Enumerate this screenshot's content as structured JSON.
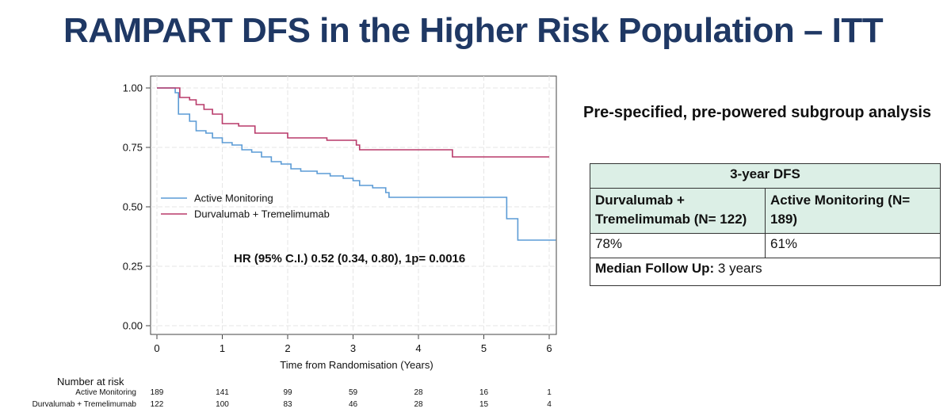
{
  "title": "RAMPART DFS in the Higher Risk Population – ITT",
  "subgroup_note": "Pre-specified, pre-powered subgroup analysis",
  "table": {
    "header": "3-year DFS",
    "columns": [
      {
        "name": "Durvalumab + Tremelimumab (N= 122)",
        "value": "78%"
      },
      {
        "name": "Active Monitoring (N= 189)",
        "value": "61%"
      }
    ],
    "followup_label": "Median Follow Up:",
    "followup_value": "3 years"
  },
  "chart_data": {
    "type": "line",
    "step": true,
    "xlabel": "Time from Randomisation (Years)",
    "ylabel": "",
    "xlim": [
      0,
      6.1
    ],
    "ylim": [
      0,
      1
    ],
    "x_ticks": [
      0,
      1,
      2,
      3,
      4,
      5,
      6
    ],
    "y_ticks": [
      "0.00",
      "0.25",
      "0.50",
      "0.75",
      "1.00"
    ],
    "grid": true,
    "legend_position": "middle-left",
    "annotation": "HR (95% C.I.) 0.52 (0.34, 0.80), 1p= 0.0016",
    "series": [
      {
        "name": "Active Monitoring",
        "color": "#5b9bd5",
        "points": [
          [
            0,
            1.0
          ],
          [
            0.22,
            1.0
          ],
          [
            0.28,
            0.98
          ],
          [
            0.33,
            0.89
          ],
          [
            0.5,
            0.86
          ],
          [
            0.6,
            0.82
          ],
          [
            0.75,
            0.81
          ],
          [
            0.85,
            0.79
          ],
          [
            1.0,
            0.77
          ],
          [
            1.15,
            0.76
          ],
          [
            1.3,
            0.74
          ],
          [
            1.45,
            0.73
          ],
          [
            1.6,
            0.71
          ],
          [
            1.75,
            0.69
          ],
          [
            1.9,
            0.68
          ],
          [
            2.05,
            0.66
          ],
          [
            2.2,
            0.65
          ],
          [
            2.45,
            0.64
          ],
          [
            2.65,
            0.63
          ],
          [
            2.85,
            0.62
          ],
          [
            3.0,
            0.61
          ],
          [
            3.1,
            0.59
          ],
          [
            3.3,
            0.58
          ],
          [
            3.5,
            0.56
          ],
          [
            3.55,
            0.54
          ],
          [
            4.0,
            0.54
          ],
          [
            4.5,
            0.54
          ],
          [
            5.35,
            0.54
          ],
          [
            5.35,
            0.45
          ],
          [
            5.52,
            0.45
          ],
          [
            5.52,
            0.36
          ],
          [
            6.1,
            0.36
          ]
        ]
      },
      {
        "name": "Durvalumab + Tremelimumab",
        "color": "#b83a6a",
        "points": [
          [
            0,
            1.0
          ],
          [
            0.28,
            1.0
          ],
          [
            0.35,
            0.96
          ],
          [
            0.5,
            0.95
          ],
          [
            0.6,
            0.93
          ],
          [
            0.72,
            0.91
          ],
          [
            0.85,
            0.89
          ],
          [
            1.0,
            0.85
          ],
          [
            1.25,
            0.84
          ],
          [
            1.5,
            0.81
          ],
          [
            2.0,
            0.79
          ],
          [
            2.6,
            0.78
          ],
          [
            3.05,
            0.76
          ],
          [
            3.1,
            0.74
          ],
          [
            3.5,
            0.74
          ],
          [
            4.0,
            0.74
          ],
          [
            4.5,
            0.74
          ],
          [
            4.52,
            0.71
          ],
          [
            6.0,
            0.71
          ]
        ]
      }
    ],
    "risk_table": {
      "title": "Number at risk",
      "times": [
        0,
        1,
        2,
        3,
        4,
        5,
        6
      ],
      "rows": [
        {
          "label": "Active Monitoring",
          "values": [
            189,
            141,
            99,
            59,
            28,
            16,
            1
          ]
        },
        {
          "label": "Durvalumab + Tremelimumab",
          "values": [
            122,
            100,
            83,
            46,
            28,
            15,
            4
          ]
        }
      ]
    }
  }
}
